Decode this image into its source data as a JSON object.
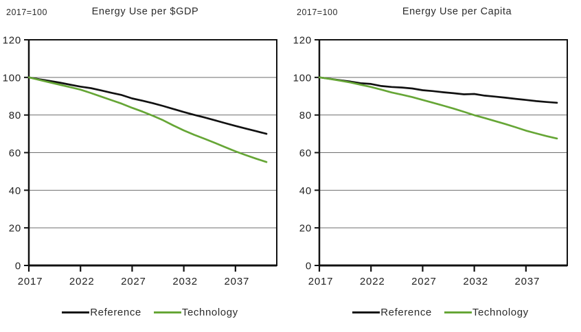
{
  "colors": {
    "reference": "#111111",
    "technology": "#66a636",
    "grid": "#6e6e6e",
    "axis": "#111111",
    "text": "#2b2b2b"
  },
  "chart_data": [
    {
      "type": "line",
      "title": "Energy Use per $GDP",
      "units_label": "2017=100",
      "x": [
        2017,
        2018,
        2019,
        2020,
        2021,
        2022,
        2023,
        2024,
        2025,
        2026,
        2027,
        2028,
        2029,
        2030,
        2031,
        2032,
        2033,
        2034,
        2035,
        2036,
        2037,
        2038,
        2039,
        2040
      ],
      "series": [
        {
          "name": "Reference",
          "color": "#111111",
          "values": [
            100,
            99.0,
            98.1,
            97.2,
            96.1,
            95.1,
            94.3,
            93.1,
            91.8,
            90.6,
            88.8,
            87.6,
            86.3,
            84.8,
            83.2,
            81.6,
            80.1,
            78.7,
            77.2,
            75.7,
            74.2,
            72.8,
            71.4,
            70.0
          ]
        },
        {
          "name": "Technology",
          "color": "#66a636",
          "values": [
            100,
            98.7,
            97.4,
            96.1,
            94.8,
            93.5,
            91.7,
            89.8,
            87.9,
            86.0,
            83.8,
            81.8,
            79.6,
            77.2,
            74.4,
            71.8,
            69.5,
            67.4,
            65.2,
            62.9,
            60.7,
            58.7,
            56.8,
            55.0
          ]
        }
      ],
      "xlabel": "",
      "ylabel": "",
      "ylim": [
        0,
        120
      ],
      "xlim": [
        2017,
        2041
      ],
      "yticks": [
        0,
        20,
        40,
        60,
        80,
        100,
        120
      ],
      "xticks": [
        2017,
        2022,
        2027,
        2032,
        2037
      ],
      "grid": "horizontal",
      "legend_position": "bottom"
    },
    {
      "type": "line",
      "title": "Energy Use per Capita",
      "units_label": "2017=100",
      "x": [
        2017,
        2018,
        2019,
        2020,
        2021,
        2022,
        2023,
        2024,
        2025,
        2026,
        2027,
        2028,
        2029,
        2030,
        2031,
        2032,
        2033,
        2034,
        2035,
        2036,
        2037,
        2038,
        2039,
        2040
      ],
      "series": [
        {
          "name": "Reference",
          "color": "#111111",
          "values": [
            100,
            99.3,
            98.5,
            97.8,
            96.9,
            96.5,
            95.4,
            94.9,
            94.6,
            94.1,
            93.2,
            92.7,
            92.1,
            91.6,
            91.0,
            91.2,
            90.3,
            89.8,
            89.2,
            88.6,
            88.0,
            87.4,
            86.9,
            86.5
          ]
        },
        {
          "name": "Technology",
          "color": "#66a636",
          "values": [
            100,
            99.2,
            98.3,
            97.3,
            96.1,
            94.9,
            93.5,
            92.0,
            90.8,
            89.5,
            88.0,
            86.5,
            85.0,
            83.4,
            81.7,
            79.9,
            78.4,
            76.8,
            75.2,
            73.5,
            71.7,
            70.2,
            68.8,
            67.5
          ]
        }
      ],
      "xlabel": "",
      "ylabel": "",
      "ylim": [
        0,
        120
      ],
      "xlim": [
        2017,
        2041
      ],
      "yticks": [
        0,
        20,
        40,
        60,
        80,
        100,
        120
      ],
      "xticks": [
        2017,
        2022,
        2027,
        2032,
        2037
      ],
      "grid": "horizontal",
      "legend_position": "bottom"
    }
  ]
}
